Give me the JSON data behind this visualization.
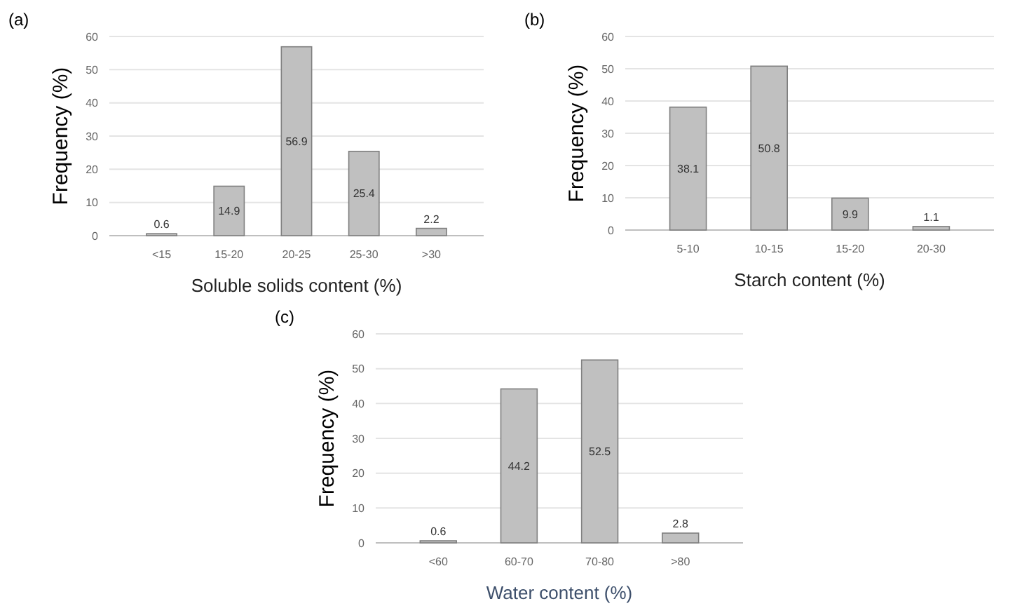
{
  "chart_data": [
    {
      "type": "bar",
      "title": "(a)",
      "xlabel": "Soluble solids content (%)",
      "ylabel": "Frequency (%)",
      "categories": [
        "<15",
        "15-20",
        "20-25",
        "25-30",
        ">30"
      ],
      "values": [
        0.6,
        14.9,
        56.9,
        25.4,
        2.2
      ],
      "color": "#c0c0c0",
      "ylim": [
        0,
        60
      ],
      "yticks": [
        0,
        10,
        20,
        30,
        40,
        50,
        60
      ],
      "grid": "y",
      "data_labels": true
    },
    {
      "type": "bar",
      "title": "(b)",
      "xlabel": "Starch content (%)",
      "ylabel": "Frequency (%)",
      "categories": [
        "5-10",
        "10-15",
        "15-20",
        "20-30"
      ],
      "values": [
        38.1,
        50.8,
        9.9,
        1.1
      ],
      "color": "#c0c0c0",
      "ylim": [
        0,
        60
      ],
      "yticks": [
        0,
        10,
        20,
        30,
        40,
        50,
        60
      ],
      "grid": "y",
      "data_labels": true
    },
    {
      "type": "bar",
      "title": "(c)",
      "xlabel": "Water content (%)",
      "ylabel": "Frequency (%)",
      "categories": [
        "<60",
        "60-70",
        "70-80",
        ">80"
      ],
      "values": [
        0.6,
        44.2,
        52.5,
        2.8
      ],
      "color": "#c0c0c0",
      "ylim": [
        0,
        60
      ],
      "yticks": [
        0,
        10,
        20,
        30,
        40,
        50,
        60
      ],
      "grid": "y",
      "data_labels": true
    }
  ]
}
